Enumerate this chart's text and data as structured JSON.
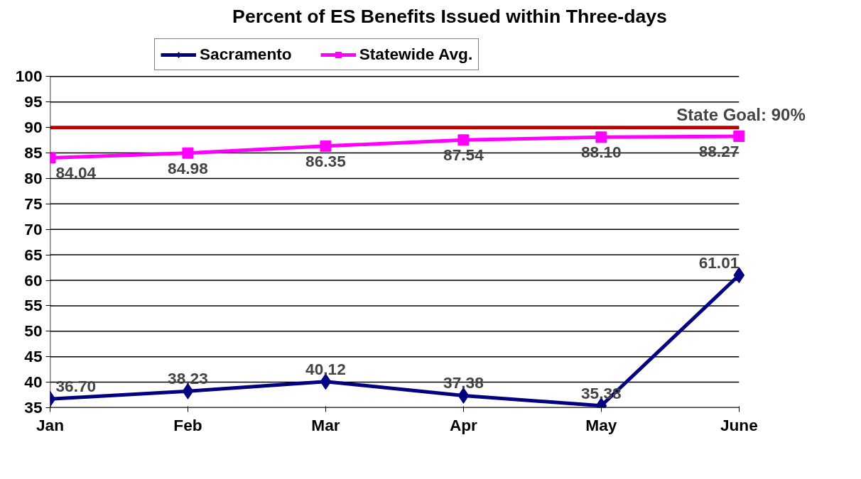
{
  "chart_data": {
    "type": "line",
    "title": "Percent of ES Benefits Issued within Three-days",
    "categories": [
      "Jan",
      "Feb",
      "Mar",
      "Apr",
      "May",
      "June"
    ],
    "series": [
      {
        "name": "Sacramento",
        "color": "#000080",
        "marker": "diamond",
        "values": [
          36.7,
          38.23,
          40.12,
          37.38,
          35.38,
          61.01
        ],
        "value_labels": [
          "36.70",
          "38.23",
          "40.12",
          "37.38",
          "35.38",
          "61.01"
        ]
      },
      {
        "name": "Statewide Avg.",
        "color": "#ff00ff",
        "marker": "square",
        "values": [
          84.04,
          84.98,
          86.35,
          87.54,
          88.1,
          88.27
        ],
        "value_labels": [
          "84.04",
          "84.98",
          "86.35",
          "87.54",
          "88.10",
          "88.27"
        ]
      }
    ],
    "ylim": [
      35,
      100
    ],
    "yticks": [
      35,
      40,
      45,
      50,
      55,
      60,
      65,
      70,
      75,
      80,
      85,
      90,
      95,
      100
    ],
    "ref_lines": [
      {
        "axis": "y",
        "value": 90,
        "label": "State Goal: 90%",
        "color": "#c00000"
      }
    ],
    "grid": "y",
    "legend": "top"
  }
}
